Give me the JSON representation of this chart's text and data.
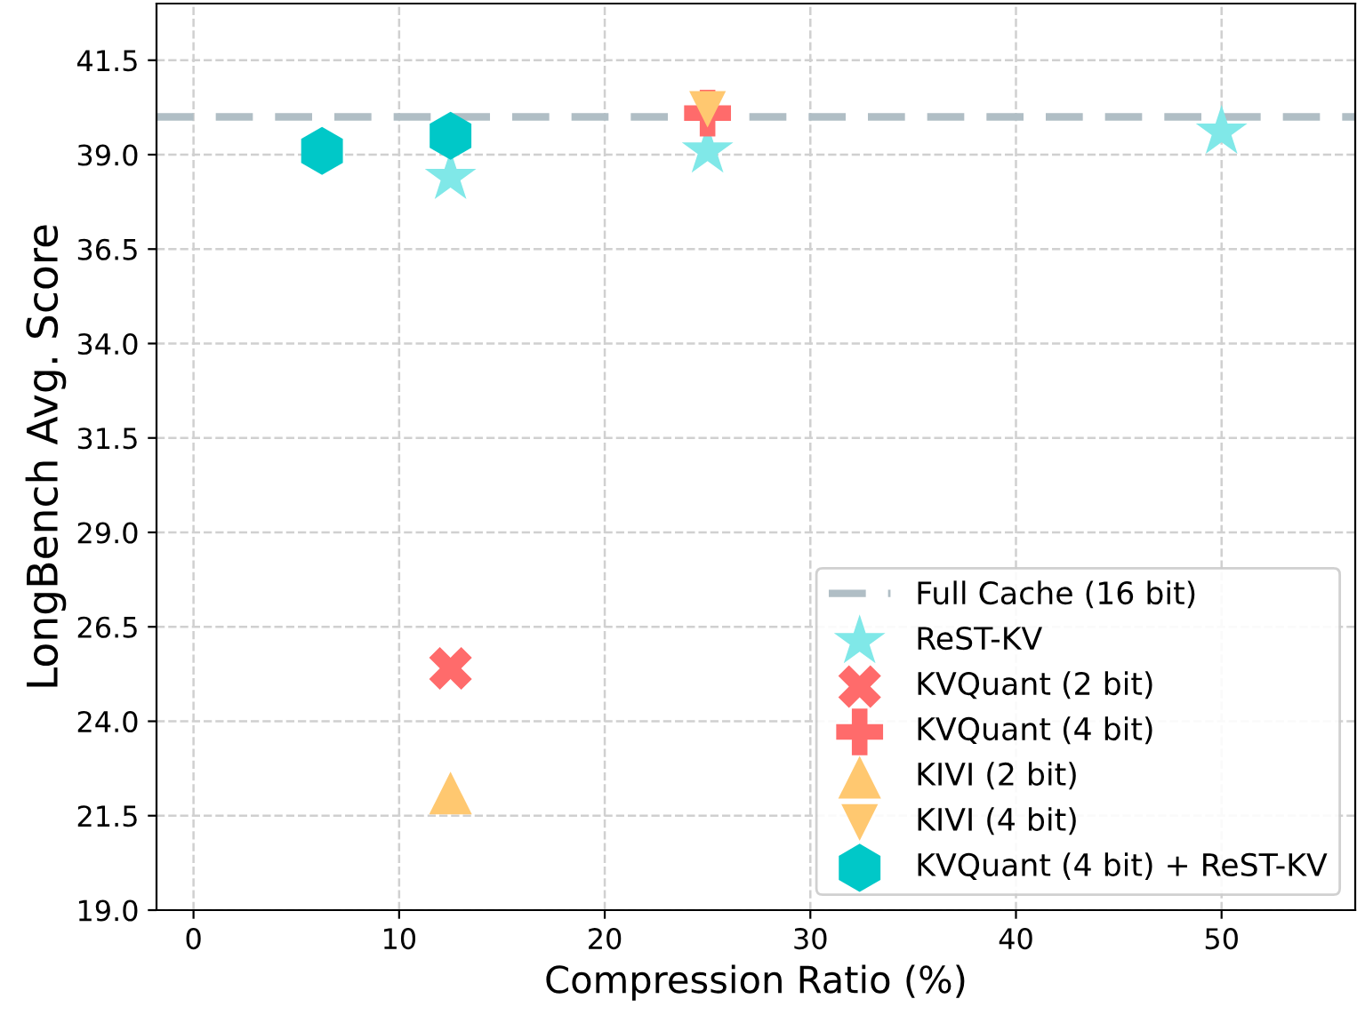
{
  "chart_data": {
    "type": "scatter",
    "xlabel": "Compression Ratio (%)",
    "ylabel": "LongBench Avg. Score",
    "xlim": [
      -1.8,
      56.5
    ],
    "ylim": [
      19.0,
      43.0
    ],
    "xticks": [
      0,
      10,
      20,
      30,
      40,
      50
    ],
    "yticks": [
      {
        "value": 19,
        "label": "19.0"
      },
      {
        "value": 21.5,
        "label": "21.5"
      },
      {
        "value": 24,
        "label": "24.0"
      },
      {
        "value": 26.5,
        "label": "26.5"
      },
      {
        "value": 29,
        "label": "29.0"
      },
      {
        "value": 31.5,
        "label": "31.5"
      },
      {
        "value": 34,
        "label": "34.0"
      },
      {
        "value": 36.5,
        "label": "36.5"
      },
      {
        "value": 39,
        "label": "39.0"
      },
      {
        "value": 41.5,
        "label": "41.5"
      }
    ],
    "grid": true,
    "legend": "bottom right",
    "ref_lines": [
      {
        "axis": "y",
        "value": 40.0,
        "label": "Full Cache (16 bit)",
        "color": "#b0bec5",
        "line_style": "dashed"
      }
    ],
    "series": [
      {
        "name": "ReST-KV",
        "color": "#80e8e8",
        "marker": "star",
        "x": [
          12.5,
          25,
          50
        ],
        "values": [
          38.4,
          39.1,
          39.6
        ]
      },
      {
        "name": "KVQuant (2 bit)",
        "color": "#ff6b6b",
        "marker": "cross",
        "x": [
          12.5
        ],
        "values": [
          25.4
        ]
      },
      {
        "name": "KVQuant (4 bit)",
        "color": "#ff6b6b",
        "marker": "plus",
        "x": [
          25
        ],
        "values": [
          40.1
        ]
      },
      {
        "name": "KIVI (2 bit)",
        "color": "#ffc870",
        "marker": "triangle",
        "x": [
          12.5
        ],
        "values": [
          22.1
        ]
      },
      {
        "name": "KIVI (4 bit)",
        "color": "#ffc870",
        "marker": "triangle_down",
        "x": [
          25
        ],
        "values": [
          40.2
        ]
      },
      {
        "name": "KVQuant (4 bit) + ReST-KV",
        "color": "#00c8c8",
        "x": [
          6.25,
          12.5
        ],
        "values": [
          39.1,
          39.5
        ]
      }
    ]
  }
}
